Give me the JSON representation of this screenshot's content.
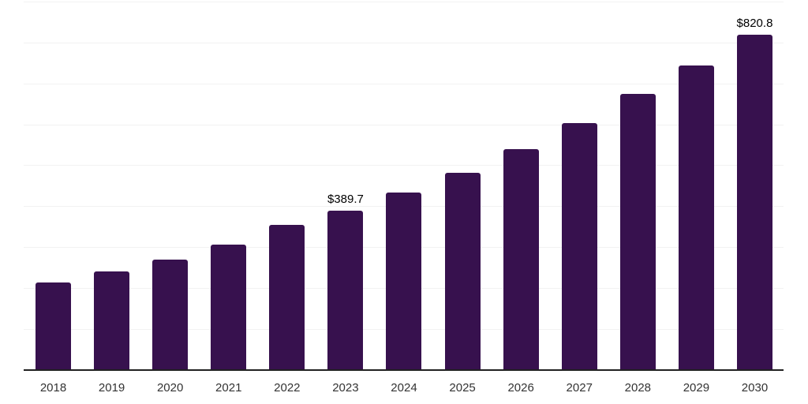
{
  "chart_data": {
    "type": "bar",
    "title": "",
    "xlabel": "",
    "ylabel": "",
    "categories": [
      "2018",
      "2019",
      "2020",
      "2021",
      "2022",
      "2023",
      "2024",
      "2025",
      "2026",
      "2027",
      "2028",
      "2029",
      "2030"
    ],
    "values": [
      213.5,
      241.4,
      269.7,
      306.9,
      355.1,
      389.7,
      434.0,
      481.6,
      539.4,
      603.6,
      675.4,
      744.8,
      820.8
    ],
    "data_labels": [
      "",
      "",
      "",
      "",
      "",
      "$389.7",
      "",
      "",
      "",
      "",
      "",
      "",
      "$820.8"
    ],
    "ylim": [
      0,
      900
    ],
    "gridline_step": 100,
    "grid": true,
    "legend": false,
    "colors": {
      "bar": "#37114E",
      "gridline": "#f2f2f2",
      "axis_line": "#212121",
      "tick_label": "#333333",
      "data_label": "#000000",
      "background": "#ffffff"
    }
  }
}
